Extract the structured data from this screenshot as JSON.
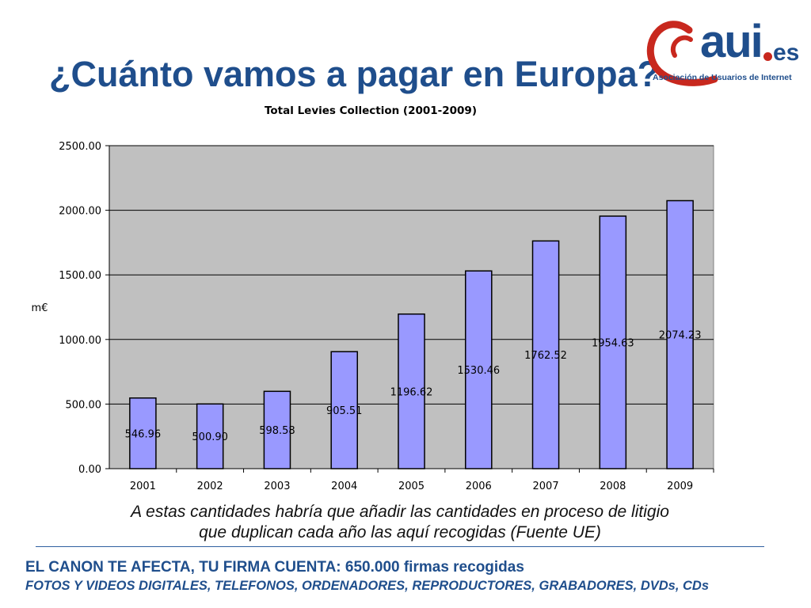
{
  "slide": {
    "title": "¿Cuánto vamos a pagar en Europa?",
    "caption_line1": "A estas cantidades habría que añadir las cantidades en proceso de litigio",
    "caption_line2": "que duplican cada año las aquí recogidas (Fuente UE)",
    "footer_line1": "EL CANON TE AFECTA, TU FIRMA CUENTA: 650.000 firmas recogidas",
    "footer_line2": "FOTOS Y VIDEOS DIGITALES, TELEFONOS, ORDENADORES, REPRODUCTORES, GRABADORES, DVDs, CDs"
  },
  "logo": {
    "brand": "aui",
    "tld": "es",
    "tagline": "Asociación de Usuarios de Internet",
    "colors": {
      "primary": "#1f4e8c",
      "accent": "#c8281e"
    }
  },
  "chart_data": {
    "type": "bar",
    "title": "Total Levies Collection (2001-2009)",
    "ylabel": "m€",
    "xlabel": "",
    "categories": [
      "2001",
      "2002",
      "2003",
      "2004",
      "2005",
      "2006",
      "2007",
      "2008",
      "2009"
    ],
    "values": [
      546.96,
      500.9,
      598.58,
      905.51,
      1196.62,
      1530.46,
      1762.52,
      1954.63,
      2074.23
    ],
    "value_labels": [
      "546.96",
      "500.90",
      "598.58",
      "905.51",
      "1196.62",
      "1530.46",
      "1762.52",
      "1954.63",
      "2074.23"
    ],
    "y_ticks": [
      "0.00",
      "500.00",
      "1000.00",
      "1500.00",
      "2000.00",
      "2500.00"
    ],
    "ylim": [
      0,
      2500
    ],
    "grid": true,
    "legend": "none",
    "bar_color": "#9999ff",
    "plot_background": "#c0c0c0"
  }
}
